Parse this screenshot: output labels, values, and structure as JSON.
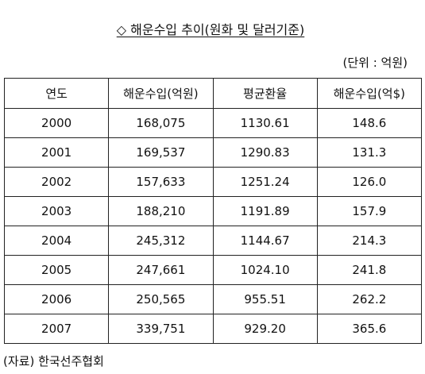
{
  "header": {
    "title": "◇ 해운수입 추이(원화 및 달러기준)",
    "unit": "(단위 : 억원)"
  },
  "table": {
    "columns": [
      "연도",
      "해운수입(억원)",
      "평균환율",
      "해운수입(억$)"
    ],
    "rows": [
      [
        "2000",
        "168,075",
        "1130.61",
        "148.6"
      ],
      [
        "2001",
        "169,537",
        "1290.83",
        "131.3"
      ],
      [
        "2002",
        "157,633",
        "1251.24",
        "126.0"
      ],
      [
        "2003",
        "188,210",
        "1191.89",
        "157.9"
      ],
      [
        "2004",
        "245,312",
        "1144.67",
        "214.3"
      ],
      [
        "2005",
        "247,661",
        "1024.10",
        "241.8"
      ],
      [
        "2006",
        "250,565",
        "955.51",
        "262.2"
      ],
      [
        "2007",
        "339,751",
        "929.20",
        "365.6"
      ]
    ]
  },
  "footer": {
    "source": "(자료) 한국선주협회"
  }
}
